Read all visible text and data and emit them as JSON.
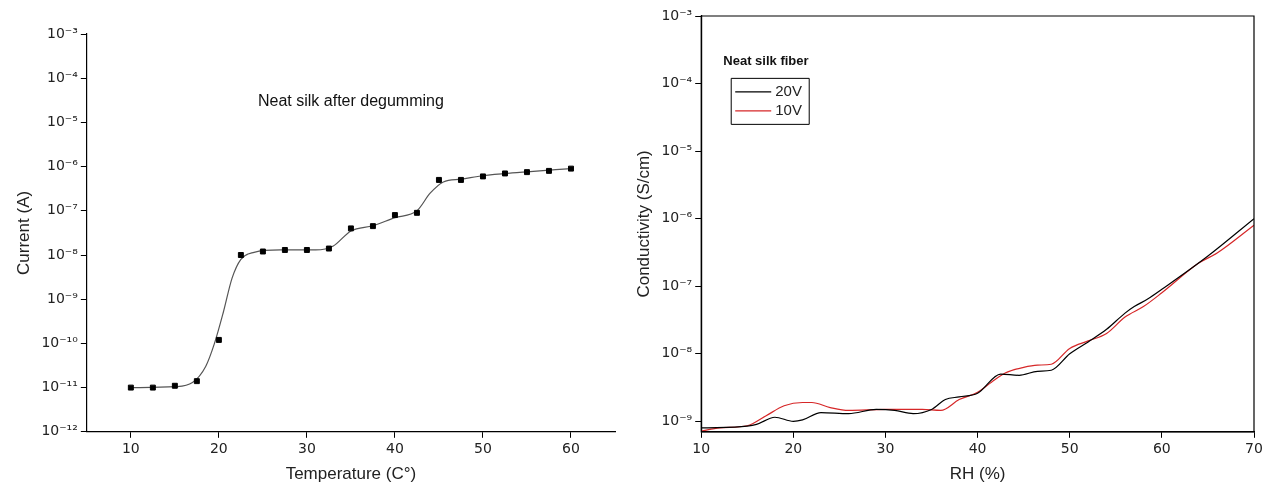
{
  "chart_data": [
    {
      "type": "scatter",
      "xlabel": "Temperature (C°)",
      "ylabel": "Current (A)",
      "annotations": [
        "Neat silk after degumming"
      ],
      "log": "y",
      "grid": false,
      "legend": false,
      "marker": "square",
      "xlim": [
        5,
        65
      ],
      "xticks": [
        10,
        20,
        30,
        40,
        50,
        60
      ],
      "ylim": [
        1e-12,
        0.001
      ],
      "yticks": [
        {
          "value": 1e-12,
          "label": "10⁻¹²"
        },
        {
          "value": 1e-11,
          "label": "10⁻¹¹"
        },
        {
          "value": 1e-10,
          "label": "10⁻¹⁰"
        },
        {
          "value": 1e-09,
          "label": "10⁻⁹"
        },
        {
          "value": 1e-08,
          "label": "10⁻⁸"
        },
        {
          "value": 1e-07,
          "label": "10⁻⁷"
        },
        {
          "value": 1e-06,
          "label": "10⁻⁶"
        },
        {
          "value": 1e-05,
          "label": "10⁻⁵"
        },
        {
          "value": 0.0001,
          "label": "10⁻⁴"
        },
        {
          "value": 0.001,
          "label": "10⁻³"
        }
      ],
      "series": [
        {
          "type": "scatter",
          "color": "#000000",
          "x": [
            10,
            12.5,
            15,
            17.5,
            20,
            22.5,
            25,
            27.5,
            30,
            32.5,
            35,
            37.5,
            40,
            42.5,
            45,
            47.5,
            50,
            52.5,
            55,
            57.5,
            60
          ],
          "values": [
            1e-11,
            1e-11,
            1.1e-11,
            1.4e-11,
            1.2e-10,
            1e-08,
            1.2e-08,
            1.3e-08,
            1.3e-08,
            1.4e-08,
            4e-08,
            4.5e-08,
            8e-08,
            9e-08,
            5e-07,
            5e-07,
            6e-07,
            7e-07,
            7.5e-07,
            8e-07,
            9e-07
          ]
        },
        {
          "type": "line",
          "color": "#555555",
          "marker": "none",
          "line_style": "solid",
          "x": [
            10,
            15,
            17,
            18.5,
            19.5,
            20.5,
            21.5,
            22.5,
            24,
            27,
            31,
            33,
            35,
            37.5,
            40,
            42.5,
            44,
            45.5,
            47.5,
            50,
            55,
            60
          ],
          "values": [
            1e-11,
            1.05e-11,
            1.3e-11,
            3e-11,
            1e-10,
            5e-10,
            3e-09,
            8e-09,
            1.15e-08,
            1.3e-08,
            1.3e-08,
            1.6e-08,
            3.5e-08,
            4.6e-08,
            7e-08,
            1e-07,
            2.5e-07,
            4.5e-07,
            5.2e-07,
            6.2e-07,
            7.6e-07,
            9e-07
          ]
        }
      ]
    },
    {
      "type": "line",
      "xlabel": "RH (%)",
      "ylabel": "Conductivity (S/cm)",
      "annotations": [
        "Neat silk fiber"
      ],
      "log": "y",
      "grid": false,
      "legend": "top left",
      "marker": "none",
      "line_style": "solid",
      "xlim": [
        10,
        70
      ],
      "xticks": [
        10,
        20,
        30,
        40,
        50,
        60,
        70
      ],
      "ylim": [
        7e-10,
        0.001
      ],
      "yticks": [
        {
          "value": 1e-09,
          "label": "10⁻⁹"
        },
        {
          "value": 1e-08,
          "label": "10⁻⁸"
        },
        {
          "value": 1e-07,
          "label": "10⁻⁷"
        },
        {
          "value": 1e-06,
          "label": "10⁻⁶"
        },
        {
          "value": 1e-05,
          "label": "10⁻⁵"
        },
        {
          "value": 0.0001,
          "label": "10⁻⁴"
        },
        {
          "value": 0.001,
          "label": "10⁻³"
        }
      ],
      "series": [
        {
          "name": "20V",
          "color": "#000000",
          "x": [
            10,
            15,
            16,
            18,
            20,
            21,
            23,
            26,
            29,
            31,
            33,
            35,
            36.5,
            38,
            40,
            42.5,
            44.5,
            46.5,
            48,
            50,
            52,
            54,
            56,
            57,
            58.5,
            60,
            65,
            70
          ],
          "values": [
            8e-10,
            8.5e-10,
            9e-10,
            1.15e-09,
            1e-09,
            1.05e-09,
            1.35e-09,
            1.3e-09,
            1.5e-09,
            1.45e-09,
            1.3e-09,
            1.5e-09,
            2.1e-09,
            2.3e-09,
            2.6e-09,
            5e-09,
            4.8e-09,
            5.5e-09,
            5.7e-09,
            1e-08,
            1.5e-08,
            2.3e-08,
            4e-08,
            5e-08,
            6.5e-08,
            9e-08,
            2.8e-07,
            1e-06
          ]
        },
        {
          "name": "10V",
          "color": "#d62728",
          "x": [
            10,
            12,
            15,
            17,
            19,
            21,
            22,
            24,
            26,
            30,
            34,
            36,
            38,
            40,
            41.5,
            43,
            45,
            46.5,
            48,
            50,
            52,
            54,
            56,
            58,
            60,
            64,
            66,
            70
          ],
          "values": [
            7.2e-10,
            8e-10,
            8.6e-10,
            1.2e-09,
            1.7e-09,
            1.9e-09,
            1.9e-09,
            1.6e-09,
            1.45e-09,
            1.5e-09,
            1.5e-09,
            1.45e-09,
            2.1e-09,
            2.7e-09,
            3.8e-09,
            5.2e-09,
            6.3e-09,
            6.8e-09,
            7e-09,
            1.2e-08,
            1.55e-08,
            2e-08,
            3.5e-08,
            5e-08,
            8e-08,
            2.2e-07,
            3.1e-07,
            8e-07
          ]
        }
      ]
    }
  ]
}
